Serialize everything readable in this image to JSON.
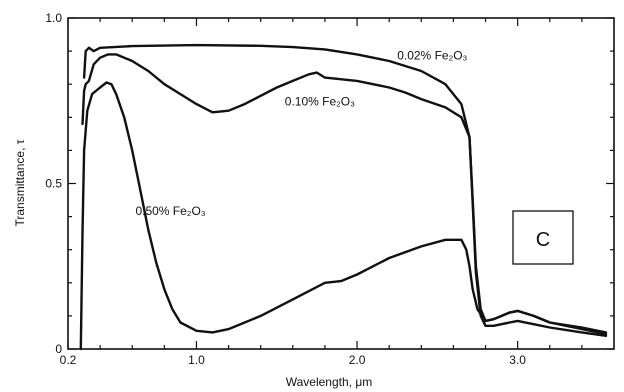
{
  "chart_data": {
    "type": "line",
    "title": "",
    "xlabel": "Wavelength, μm",
    "ylabel": "Transmittance, τ",
    "xlim": [
      0.2,
      3.6
    ],
    "ylim": [
      0,
      1.0
    ],
    "x_ticks": [
      {
        "value": 0.2,
        "label": "0.2"
      },
      {
        "value": 1.0,
        "label": "1.0"
      },
      {
        "value": 2.0,
        "label": "2.0"
      },
      {
        "value": 3.0,
        "label": "3.0"
      }
    ],
    "x_minor_ticks": [
      0.4,
      0.6,
      0.8,
      1.2,
      1.4,
      1.6,
      1.8,
      2.2,
      2.4,
      2.6,
      2.8,
      3.2,
      3.4
    ],
    "y_ticks": [
      {
        "value": 0,
        "label": "0"
      },
      {
        "value": 0.5,
        "label": "0.5"
      },
      {
        "value": 1.0,
        "label": "1.0"
      }
    ],
    "y_minor_ticks": [
      0.1,
      0.2,
      0.3,
      0.4,
      0.6,
      0.7,
      0.8,
      0.9
    ],
    "grid": false,
    "panel_label": "C",
    "series": [
      {
        "name": "0.02% Fe2O3",
        "label_text": "0.02% Fe₂O₃",
        "label_at": [
          2.25,
          0.875
        ],
        "points": [
          [
            0.3,
            0.82
          ],
          [
            0.31,
            0.9
          ],
          [
            0.33,
            0.91
          ],
          [
            0.36,
            0.9
          ],
          [
            0.4,
            0.91
          ],
          [
            0.6,
            0.915
          ],
          [
            1.0,
            0.918
          ],
          [
            1.4,
            0.916
          ],
          [
            1.6,
            0.912
          ],
          [
            1.8,
            0.905
          ],
          [
            2.0,
            0.89
          ],
          [
            2.2,
            0.87
          ],
          [
            2.4,
            0.84
          ],
          [
            2.55,
            0.8
          ],
          [
            2.65,
            0.74
          ],
          [
            2.7,
            0.64
          ],
          [
            2.72,
            0.45
          ],
          [
            2.74,
            0.25
          ],
          [
            2.77,
            0.12
          ],
          [
            2.8,
            0.085
          ],
          [
            2.85,
            0.09
          ],
          [
            2.95,
            0.11
          ],
          [
            3.0,
            0.115
          ],
          [
            3.1,
            0.1
          ],
          [
            3.2,
            0.08
          ],
          [
            3.4,
            0.06
          ],
          [
            3.55,
            0.045
          ]
        ]
      },
      {
        "name": "0.10% Fe2O3",
        "label_text": "0.10% Fe₂O₃",
        "label_at": [
          1.55,
          0.735
        ],
        "points": [
          [
            0.29,
            0.68
          ],
          [
            0.3,
            0.78
          ],
          [
            0.31,
            0.8
          ],
          [
            0.33,
            0.81
          ],
          [
            0.36,
            0.86
          ],
          [
            0.4,
            0.88
          ],
          [
            0.45,
            0.89
          ],
          [
            0.5,
            0.89
          ],
          [
            0.6,
            0.87
          ],
          [
            0.7,
            0.84
          ],
          [
            0.8,
            0.8
          ],
          [
            0.9,
            0.77
          ],
          [
            1.0,
            0.74
          ],
          [
            1.1,
            0.715
          ],
          [
            1.2,
            0.72
          ],
          [
            1.3,
            0.74
          ],
          [
            1.4,
            0.765
          ],
          [
            1.5,
            0.79
          ],
          [
            1.6,
            0.81
          ],
          [
            1.7,
            0.83
          ],
          [
            1.75,
            0.835
          ],
          [
            1.8,
            0.82
          ],
          [
            2.0,
            0.81
          ],
          [
            2.2,
            0.79
          ],
          [
            2.3,
            0.775
          ],
          [
            2.4,
            0.755
          ],
          [
            2.55,
            0.73
          ],
          [
            2.65,
            0.7
          ],
          [
            2.7,
            0.64
          ],
          [
            2.72,
            0.44
          ],
          [
            2.74,
            0.23
          ],
          [
            2.77,
            0.1
          ],
          [
            2.8,
            0.07
          ],
          [
            2.85,
            0.07
          ],
          [
            2.95,
            0.08
          ],
          [
            3.0,
            0.085
          ],
          [
            3.1,
            0.075
          ],
          [
            3.2,
            0.065
          ],
          [
            3.4,
            0.05
          ],
          [
            3.55,
            0.04
          ]
        ]
      },
      {
        "name": "0.50% Fe2O3",
        "label_text": "0.50% Fe₂O₃",
        "label_at": [
          0.62,
          0.405
        ],
        "points": [
          [
            0.28,
            0.0
          ],
          [
            0.29,
            0.35
          ],
          [
            0.3,
            0.6
          ],
          [
            0.32,
            0.72
          ],
          [
            0.35,
            0.77
          ],
          [
            0.4,
            0.79
          ],
          [
            0.44,
            0.805
          ],
          [
            0.47,
            0.8
          ],
          [
            0.5,
            0.77
          ],
          [
            0.55,
            0.7
          ],
          [
            0.6,
            0.6
          ],
          [
            0.65,
            0.48
          ],
          [
            0.7,
            0.36
          ],
          [
            0.75,
            0.26
          ],
          [
            0.8,
            0.18
          ],
          [
            0.85,
            0.12
          ],
          [
            0.9,
            0.08
          ],
          [
            1.0,
            0.055
          ],
          [
            1.1,
            0.05
          ],
          [
            1.2,
            0.06
          ],
          [
            1.4,
            0.1
          ],
          [
            1.6,
            0.15
          ],
          [
            1.8,
            0.2
          ],
          [
            1.9,
            0.205
          ],
          [
            2.0,
            0.225
          ],
          [
            2.2,
            0.275
          ],
          [
            2.4,
            0.31
          ],
          [
            2.55,
            0.33
          ],
          [
            2.65,
            0.33
          ],
          [
            2.68,
            0.3
          ],
          [
            2.7,
            0.25
          ],
          [
            2.72,
            0.18
          ],
          [
            2.75,
            0.12
          ],
          [
            2.8,
            0.085
          ],
          [
            2.85,
            0.09
          ],
          [
            2.95,
            0.11
          ],
          [
            3.0,
            0.115
          ],
          [
            3.1,
            0.1
          ],
          [
            3.2,
            0.08
          ],
          [
            3.4,
            0.065
          ],
          [
            3.55,
            0.05
          ]
        ]
      }
    ]
  }
}
